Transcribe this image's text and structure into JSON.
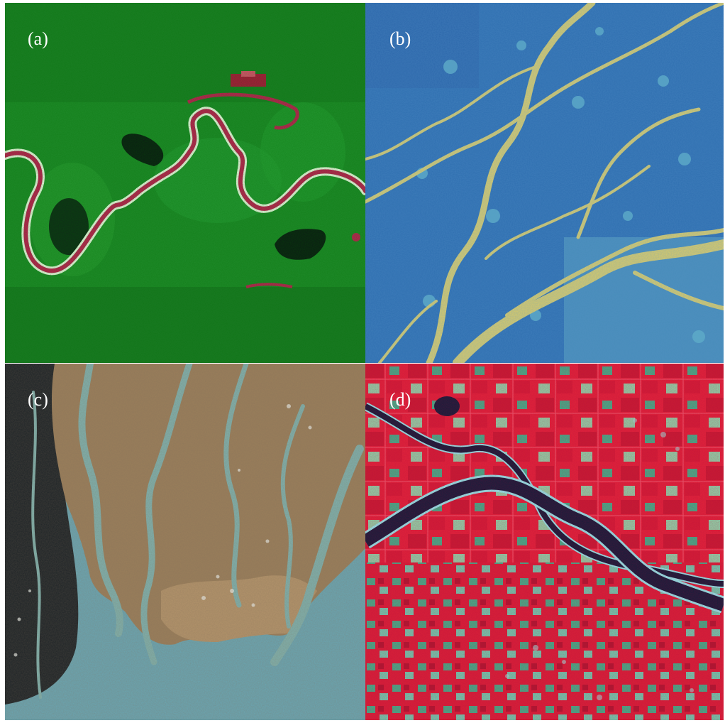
{
  "panels": [
    {
      "label": "(a)",
      "palette": {
        "land": "#1f8a2a",
        "river": "#c21e55",
        "oxbow": "#0c1a14",
        "bank": "#eaf7e0"
      }
    },
    {
      "label": "(b)",
      "palette": {
        "land": "#2f6fb0",
        "channels": "#d6c96a",
        "lakes": "#5fb0c8"
      }
    },
    {
      "label": "(c)",
      "palette": {
        "land": "#9a7e5a",
        "water": "#7fb1ad",
        "mangrove": "#1c2226",
        "sea": "#6aa6b3"
      }
    },
    {
      "label": "(d)",
      "palette": {
        "fields": "#e0253a",
        "river": "#12203a",
        "bank": "#8ff0ee",
        "crop": "#42b38a"
      }
    }
  ]
}
